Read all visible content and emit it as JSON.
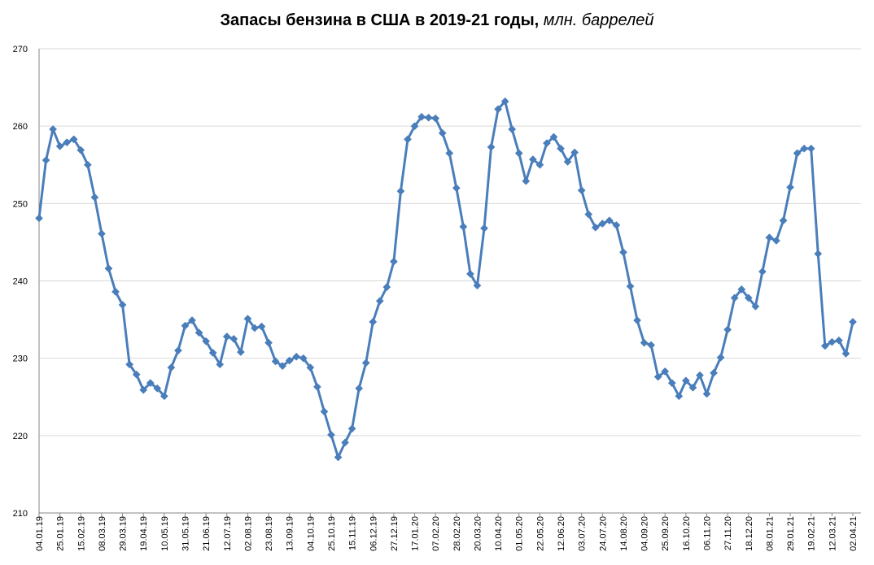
{
  "chart_data": {
    "type": "line",
    "title": "Запасы бензина в США в 2019-21 годы,",
    "title_unit": "млн. баррелей",
    "xlabel": "",
    "ylabel": "",
    "ylim": [
      210,
      270
    ],
    "yticks": [
      210,
      220,
      230,
      240,
      250,
      260,
      270
    ],
    "grid": true,
    "legend": "none",
    "colors": {
      "line": "#4a7ebb",
      "marker": "#4a7ebb",
      "grid": "#d9d9d9",
      "axis": "#868686"
    },
    "x_tick_labels": [
      "04.01.19",
      "25.01.19",
      "15.02.19",
      "08.03.19",
      "29.03.19",
      "19.04.19",
      "10.05.19",
      "31.05.19",
      "21.06.19",
      "12.07.19",
      "02.08.19",
      "23.08.19",
      "13.09.19",
      "04.10.19",
      "25.10.19",
      "15.11.19",
      "06.12.19",
      "27.12.19",
      "17.01.20",
      "07.02.20",
      "28.02.20",
      "20.03.20",
      "10.04.20",
      "01.05.20",
      "22.05.20",
      "12.06.20",
      "03.07.20",
      "24.07.20",
      "14.08.20",
      "04.09.20",
      "25.09.20",
      "16.10.20",
      "06.11.20",
      "27.11.20",
      "18.12.20",
      "08.01.21",
      "29.01.21",
      "19.02.21",
      "12.03.21",
      "02.04.21"
    ],
    "series": [
      {
        "values": [
          248.1,
          255.6,
          259.6,
          257.4,
          257.9,
          258.3,
          256.9,
          255.0,
          250.8,
          246.1,
          241.6,
          238.6,
          236.9,
          229.2,
          227.9,
          225.9,
          226.8,
          226.1,
          225.1,
          228.8,
          231.0,
          234.2,
          234.9,
          233.3,
          232.2,
          230.7,
          229.2,
          232.8,
          232.5,
          230.8,
          235.1,
          233.9,
          234.1,
          232.0,
          229.6,
          229.0,
          229.7,
          230.2,
          230.0,
          228.8,
          226.3,
          223.1,
          220.1,
          217.2,
          219.1,
          220.9,
          226.1,
          229.4,
          234.7,
          237.4,
          239.2,
          242.5,
          251.6,
          258.3,
          260.0,
          261.2,
          261.1,
          261.0,
          259.1,
          256.5,
          252.0,
          247.0,
          240.9,
          239.4,
          246.8,
          257.3,
          262.2,
          263.2,
          259.6,
          256.5,
          252.9,
          255.7,
          255.0,
          257.8,
          258.6,
          257.1,
          255.4,
          256.6,
          251.7,
          248.6,
          246.9,
          247.4,
          247.8,
          247.2,
          243.7,
          239.3,
          234.9,
          232.0,
          231.7,
          227.6,
          228.3,
          226.8,
          225.1,
          227.1,
          226.2,
          227.8,
          225.4,
          228.1,
          230.1,
          233.7,
          237.8,
          238.9,
          237.8,
          236.7,
          241.2,
          245.6,
          245.2,
          247.8,
          252.1,
          256.5,
          257.1,
          257.1,
          243.5,
          231.6,
          232.1,
          232.3,
          230.6,
          234.7
        ]
      }
    ]
  }
}
